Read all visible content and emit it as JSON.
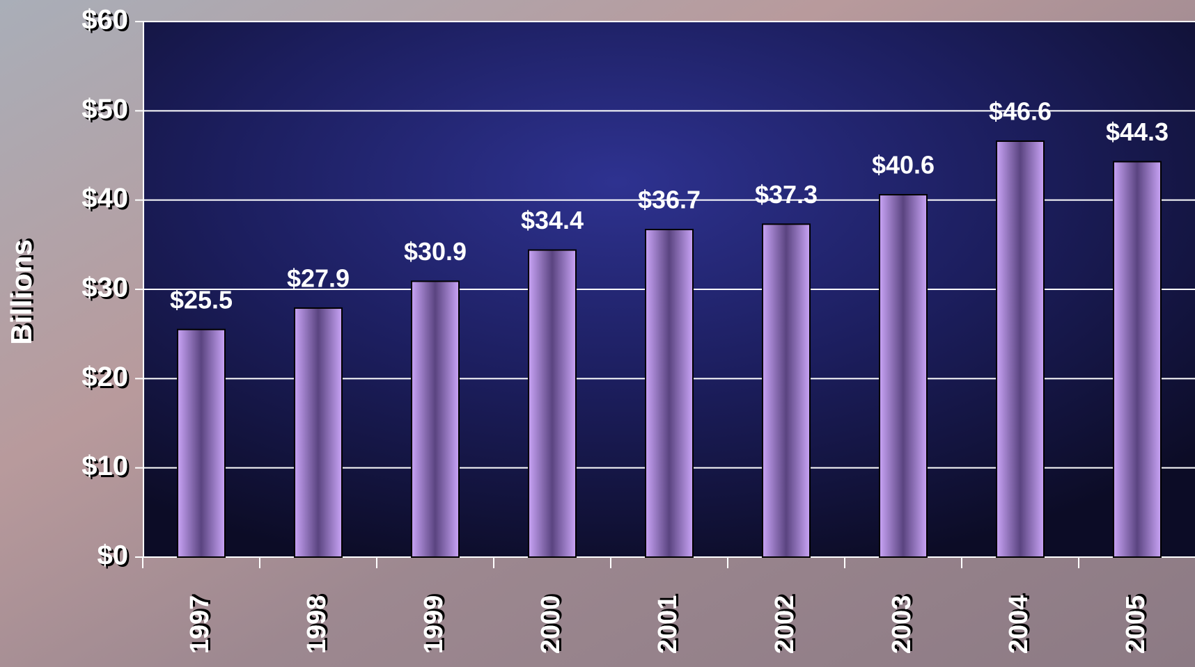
{
  "chart_data": {
    "type": "bar",
    "y_label": "Billions",
    "categories": [
      "1997",
      "1998",
      "1999",
      "2000",
      "2001",
      "2002",
      "2003",
      "2004",
      "2005"
    ],
    "values": [
      25.5,
      27.9,
      30.9,
      34.4,
      36.7,
      37.3,
      40.6,
      46.6,
      44.3
    ],
    "value_labels": [
      "$25.5",
      "$27.9",
      "$30.9",
      "$34.4",
      "$36.7",
      "$37.3",
      "$40.6",
      "$46.6",
      "$44.3"
    ],
    "color": "#b894e8",
    "ylim": [
      0,
      60
    ],
    "yticks": [
      {
        "value": 0,
        "label": "$0"
      },
      {
        "value": 10,
        "label": "$10"
      },
      {
        "value": 20,
        "label": "$20"
      },
      {
        "value": 30,
        "label": "$30"
      },
      {
        "value": 40,
        "label": "$40"
      },
      {
        "value": 50,
        "label": "$50"
      },
      {
        "value": 60,
        "label": "$60"
      }
    ],
    "grid": true
  }
}
